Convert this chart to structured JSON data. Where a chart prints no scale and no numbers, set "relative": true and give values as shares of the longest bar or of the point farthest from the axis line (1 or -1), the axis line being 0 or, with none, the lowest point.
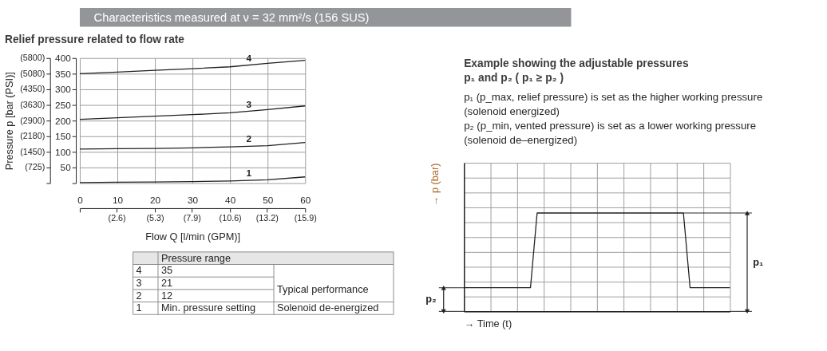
{
  "chart_data": [
    {
      "type": "line",
      "title": "Characteristics measured at ν = 32 mm²/s (156 SUS)",
      "subtitle": "Relief pressure related to flow rate",
      "xlabel": "Flow Q [l/min (GPM)]",
      "y2label": "Pressure p [bar (PSI)]",
      "x": [
        0,
        10,
        20,
        30,
        40,
        50,
        60
      ],
      "series": [
        {
          "name": "1",
          "color": "#231f20",
          "values": [
            2,
            3,
            4,
            5,
            7,
            11,
            20
          ]
        },
        {
          "name": "2",
          "color": "#231f20",
          "values": [
            109,
            110,
            111,
            113,
            116,
            120,
            130
          ]
        },
        {
          "name": "3",
          "color": "#231f20",
          "values": [
            204,
            209,
            214,
            219,
            225,
            235,
            247
          ]
        },
        {
          "name": "4",
          "color": "#231f20",
          "values": [
            350,
            355,
            361,
            366,
            372,
            383,
            393
          ]
        }
      ],
      "xlim": [
        0,
        60
      ],
      "xticks": [
        0,
        10,
        20,
        30,
        40,
        50,
        60
      ],
      "x2lim": [
        0,
        15.9
      ],
      "x2ticks": [
        {
          "value": 0,
          "label": null
        },
        {
          "value": 2.6,
          "label": "(2.6)"
        },
        {
          "value": 5.3,
          "label": "(5.3)"
        },
        {
          "value": 7.9,
          "label": "(7.9)"
        },
        {
          "value": 10.6,
          "label": "(10.6)"
        },
        {
          "value": 13.2,
          "label": "(13.2)"
        },
        {
          "value": 15.9,
          "label": "(15.9)"
        }
      ],
      "ylim": [
        0,
        400
      ],
      "yticks": [
        {
          "value": 0,
          "label": null
        },
        50,
        100,
        150,
        200,
        250,
        300,
        350,
        400
      ],
      "y2lim": [
        0,
        5800
      ],
      "y2ticks": [
        {
          "value": 0,
          "label": null
        },
        {
          "value": 725,
          "label": "(725)"
        },
        {
          "value": 1450,
          "label": "(1450)"
        },
        {
          "value": 2180,
          "label": "(2180)"
        },
        {
          "value": 2900,
          "label": "(2900)"
        },
        {
          "value": 3630,
          "label": "(3630)"
        },
        {
          "value": 4350,
          "label": "(4350)"
        },
        {
          "value": 5080,
          "label": "(5080)"
        },
        {
          "value": 5800,
          "label": "(5800)"
        }
      ],
      "grid": true,
      "marker": "none",
      "line_style": "solid",
      "annotations": [
        "Pressure range",
        "4",
        "35",
        "3",
        "21",
        "2",
        "12",
        "1",
        "Min. pressure setting",
        "Typical performance",
        "Solenoid de-energized"
      ]
    },
    {
      "type": "line",
      "relative": true,
      "title": "Example showing the adjustable pressures",
      "subtitle": "p₁ and p₂ ( p₁ ≥ p₂ )",
      "xlabel": "→ Time (t)",
      "ylabel": "→ p (bar)",
      "categories": [
        null,
        null,
        null,
        null,
        null,
        null,
        null,
        null,
        null,
        null,
        null,
        null,
        null,
        null,
        null,
        null,
        null,
        null,
        null,
        null,
        null,
        null,
        null,
        null,
        null,
        null,
        null,
        null,
        null,
        null,
        null,
        null,
        null,
        null,
        null,
        null,
        null,
        null,
        null,
        null,
        null
      ],
      "series": [
        {
          "color": "#231f20",
          "values": [
            0.24,
            0.24,
            0.24,
            0.24,
            0.24,
            0.24,
            0.24,
            0.24,
            0.24,
            0.24,
            0.24,
            1,
            1,
            1,
            1,
            1,
            1,
            1,
            1,
            1,
            1,
            1,
            1,
            1,
            1,
            1,
            1,
            1,
            1,
            1,
            1,
            1,
            1,
            1,
            0.24,
            0.24,
            0.24,
            0.24,
            0.24,
            0.24,
            0.24
          ]
        }
      ],
      "grid": true,
      "annotations": [
        "p₁ (p_max, relief pressure) is set as the higher working pressure (solenoid energized)",
        "p₂ (p_min, vented pressure) is set as a lower working pressure (solenoid de–energized)",
        "p₁",
        "p₂"
      ]
    }
  ]
}
